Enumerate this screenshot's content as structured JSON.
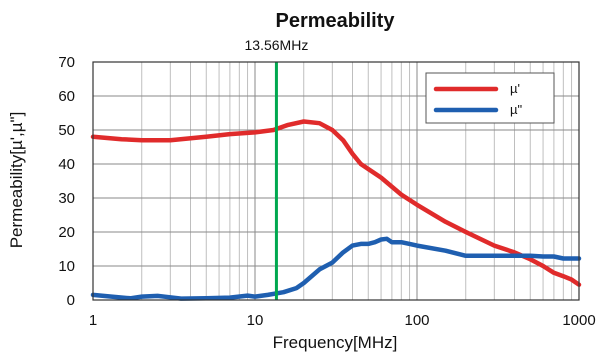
{
  "chart_data": {
    "type": "line",
    "title": "Permeability",
    "xlabel": "Frequency[MHz]",
    "ylabel": "Permeability[µ',µ\"]",
    "xscale": "log",
    "xlim": [
      1,
      1000
    ],
    "ylim": [
      0,
      70
    ],
    "x_ticks": [
      "1",
      "10",
      "100",
      "1000"
    ],
    "y_ticks": [
      "0",
      "10",
      "20",
      "30",
      "40",
      "50",
      "60",
      "70"
    ],
    "grid": true,
    "legend_position": "top-right",
    "annotation": {
      "label": "13.56MHz",
      "x": 13.56,
      "color": "#00a84f"
    },
    "series": [
      {
        "name": "µ'",
        "color": "#e02b2b",
        "x": [
          1,
          1.5,
          2,
          3,
          5,
          7,
          10,
          13,
          16,
          20,
          25,
          30,
          35,
          40,
          45,
          60,
          80,
          100,
          150,
          200,
          300,
          400,
          500,
          600,
          700,
          800,
          900,
          1000
        ],
        "y": [
          48,
          47.3,
          47,
          47,
          48,
          48.8,
          49.3,
          50,
          51.5,
          52.5,
          52,
          50,
          47,
          43,
          40,
          36,
          31,
          28,
          23,
          20,
          16,
          14,
          12,
          10,
          8,
          7,
          6,
          4.5
        ]
      },
      {
        "name": "µ\"",
        "color": "#1f5fb0",
        "x": [
          1,
          1.3,
          1.7,
          2,
          2.5,
          3,
          3.5,
          5,
          7,
          9,
          10,
          12,
          15,
          18,
          20,
          25,
          30,
          35,
          40,
          45,
          50,
          55,
          60,
          65,
          70,
          80,
          90,
          100,
          150,
          200,
          300,
          400,
          500,
          600,
          700,
          800,
          1000
        ],
        "y": [
          1.5,
          1,
          0.5,
          1,
          1.2,
          0.8,
          0.4,
          0.5,
          0.7,
          1.3,
          1,
          1.5,
          2.3,
          3.5,
          5,
          9,
          11,
          14,
          16,
          16.5,
          16.5,
          17,
          17.8,
          18,
          17,
          17,
          16.5,
          16,
          14.5,
          13,
          13,
          13,
          13,
          12.8,
          12.8,
          12.2,
          12.2
        ]
      }
    ]
  }
}
